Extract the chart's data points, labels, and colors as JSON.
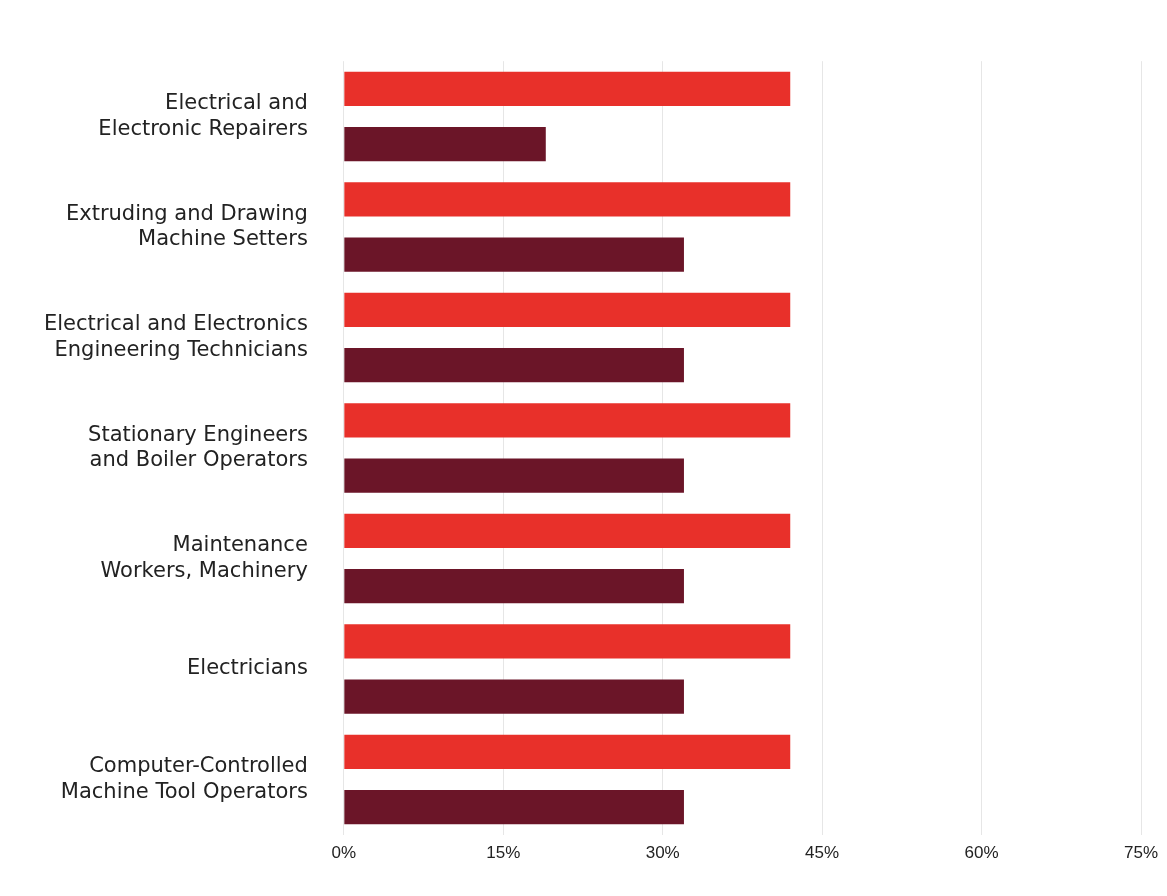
{
  "chart_data": {
    "type": "bar",
    "orientation": "horizontal",
    "categories": [
      "Electrical and Electronic Repairers",
      "Extruding and Drawing Machine Setters",
      "Electrical and Electronics Engineering Technicians",
      "Stationary Engineers and Boiler Operators",
      "Maintenance Workers, Machinery",
      "Electricians",
      "Computer-Controlled Machine Tool Operators"
    ],
    "series": [
      {
        "color": "#e8302a",
        "values": [
          42,
          42,
          42,
          42,
          42,
          42,
          42
        ]
      },
      {
        "color": "#6b1528",
        "values": [
          19,
          32,
          32,
          32,
          32,
          32,
          32
        ]
      }
    ],
    "xlim": [
      0,
      75
    ],
    "xticks": [
      {
        "value": 0,
        "label": "0%"
      },
      {
        "value": 15,
        "label": "15%"
      },
      {
        "value": 30,
        "label": "30%"
      },
      {
        "value": 45,
        "label": "45%"
      },
      {
        "value": 60,
        "label": "60%"
      },
      {
        "value": 75,
        "label": "75%"
      }
    ],
    "grid": "x",
    "legend": false
  }
}
